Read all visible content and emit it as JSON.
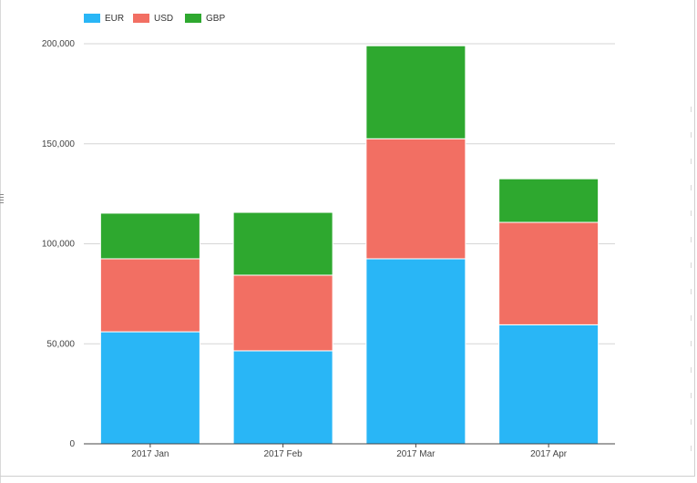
{
  "chart_data": {
    "type": "bar",
    "stacked": true,
    "categories": [
      "2017 Jan",
      "2017 Feb",
      "2017 Mar",
      "2017 Apr"
    ],
    "series": [
      {
        "name": "EUR",
        "color": "#29b6f6",
        "values": [
          56000,
          46500,
          92500,
          59500
        ]
      },
      {
        "name": "USD",
        "color": "#f26f63",
        "values": [
          36500,
          37800,
          60000,
          51200
        ]
      },
      {
        "name": "GBP",
        "color": "#2ea82f",
        "values": [
          22800,
          31400,
          46500,
          21800
        ]
      }
    ],
    "ylim": [
      0,
      200000
    ],
    "yticks": [
      0,
      50000,
      100000,
      150000,
      200000
    ],
    "ytick_labels": [
      "0",
      "50,000",
      "100,000",
      "150,000",
      "200,000"
    ],
    "grid": true,
    "legend_position": "top-left"
  }
}
